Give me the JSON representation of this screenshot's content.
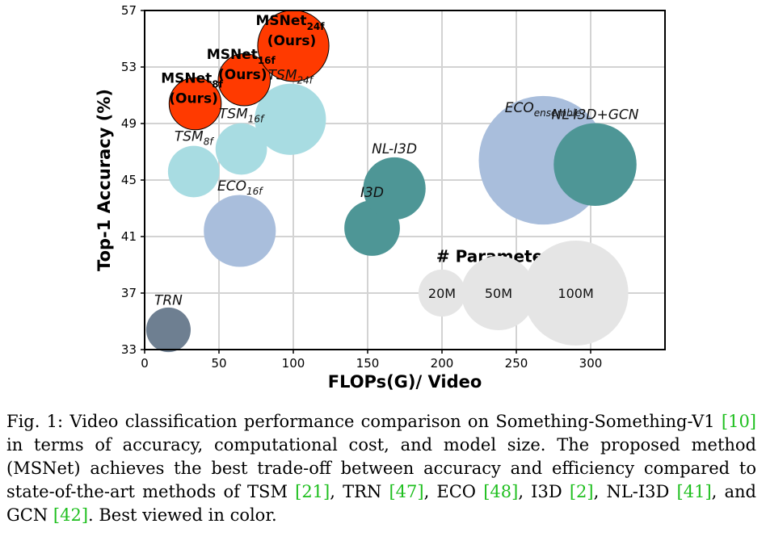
{
  "chart_data": {
    "type": "bubble",
    "xlabel": "FLOPs(G)/ Video",
    "ylabel": "Top-1 Accuracy (%)",
    "xlim": [
      0,
      350
    ],
    "ylim": [
      33,
      57
    ],
    "xticks": [
      0,
      50,
      100,
      150,
      200,
      250,
      300
    ],
    "yticks": [
      33,
      37,
      41,
      45,
      49,
      53,
      57
    ],
    "points": [
      {
        "id": "trn",
        "label": "TRN",
        "sub": "",
        "x": 16,
        "y": 34.4,
        "params": 18,
        "color": "#6e7f91",
        "ours": false
      },
      {
        "id": "eco16",
        "label": "ECO",
        "sub": "16f",
        "x": 64,
        "y": 41.4,
        "params": 47,
        "color": "#a9bedc",
        "ours": false
      },
      {
        "id": "tsm8",
        "label": "TSM",
        "sub": "8f",
        "x": 33,
        "y": 45.6,
        "params": 24,
        "color": "#a8dce2",
        "ours": false
      },
      {
        "id": "tsm16",
        "label": "TSM",
        "sub": "16f",
        "x": 65,
        "y": 47.2,
        "params": 24,
        "color": "#a8dce2",
        "ours": false
      },
      {
        "id": "tsm24",
        "label": "TSM",
        "sub": "24f",
        "x": 98,
        "y": 49.3,
        "params": 46,
        "color": "#a8dce2",
        "ours": false
      },
      {
        "id": "i3d",
        "label": "I3D",
        "sub": "",
        "x": 153,
        "y": 41.6,
        "params": 28,
        "color": "#4e9696",
        "ours": false
      },
      {
        "id": "nli3d",
        "label": "NL-I3D",
        "sub": "",
        "x": 168,
        "y": 44.4,
        "params": 35.3,
        "color": "#4e9696",
        "ours": false
      },
      {
        "id": "ecoens",
        "label": "ECO",
        "sub": "ensemble",
        "x": 268,
        "y": 46.4,
        "params": 150,
        "color": "#a9bedc",
        "ours": false
      },
      {
        "id": "gcn",
        "label": "NL-I3D+GCN",
        "sub": "",
        "x": 303,
        "y": 46.1,
        "params": 62.2,
        "color": "#4e9696",
        "ours": false
      },
      {
        "id": "ms8",
        "label": "MSNet",
        "sub": "8f",
        "x": 34,
        "y": 50.4,
        "params": 24.6,
        "color": "#ff3a00",
        "ours": true
      },
      {
        "id": "ms16",
        "label": "MSNet",
        "sub": "16f",
        "x": 67,
        "y": 52.1,
        "params": 24.6,
        "color": "#ff3a00",
        "ours": true
      },
      {
        "id": "ms24",
        "label": "MSNet",
        "sub": "24f",
        "x": 100,
        "y": 54.5,
        "params": 46,
        "color": "#ff3a00",
        "ours": true
      }
    ],
    "ours_tag": "(Ours)",
    "legend": {
      "title": "# Parameters",
      "items": [
        {
          "label": "20M",
          "params": 20,
          "x": 200
        },
        {
          "label": "50M",
          "params": 50,
          "x": 238
        },
        {
          "label": "100M",
          "params": 100,
          "x": 290
        }
      ],
      "y": 37,
      "color": "#e5e5e5"
    }
  },
  "caption": {
    "prefix": "Fig. 1: Video classification performance comparison on Something-Something-V1 ",
    "c10": "[10]",
    "p1": " in terms of accuracy, computational cost, and model size. The proposed method (MSNet) achieves the best trade-off between accuracy and efficiency compared to state-of-the-art methods of TSM ",
    "c21": "[21]",
    "p2": ", TRN ",
    "c47": "[47]",
    "p3": ", ECO ",
    "c48": "[48]",
    "p4": ", I3D ",
    "c2": "[2]",
    "p5": ", NL-I3D ",
    "c41": "[41]",
    "p6": ", and GCN ",
    "c42": "[42]",
    "p7": ". Best viewed in color."
  }
}
